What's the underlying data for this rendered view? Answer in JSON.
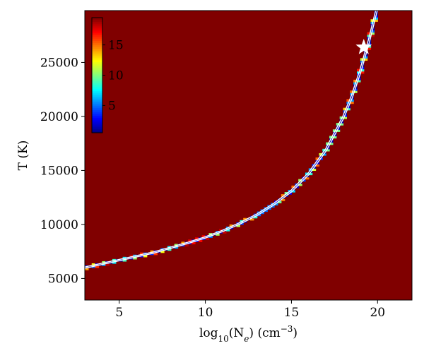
{
  "chart_data": {
    "type": "heatmap",
    "title": "",
    "xlabel": "log10(Ne) (cm−3)",
    "xlabel_parts": {
      "pre": "log",
      "sub": "10",
      "mid": "(N",
      "sub2": "e",
      "post": ") (cm",
      "sup": "−3",
      "end": ")"
    },
    "ylabel": "T (K)",
    "xlim": [
      3,
      22
    ],
    "ylim": [
      3000,
      29800
    ],
    "xticks": [
      5,
      10,
      15,
      20
    ],
    "yticks": [
      5000,
      10000,
      15000,
      20000,
      25000
    ],
    "colormap": "jet",
    "colorbar": {
      "range": [
        0.5,
        19.5
      ],
      "ticks": [
        5,
        10,
        15
      ],
      "placement": "inset top-left"
    },
    "background_value": 19.5,
    "valley_curve": {
      "log10_ne": [
        3,
        5,
        7,
        9,
        10,
        11,
        12,
        13,
        14,
        15,
        16,
        17,
        18,
        18.5,
        19,
        19.5,
        20
      ],
      "temperature_K": [
        6000,
        6700,
        7400,
        8300,
        8800,
        9400,
        10100,
        10900,
        11900,
        13100,
        14700,
        16900,
        19900,
        21800,
        24200,
        27000,
        30200
      ]
    },
    "contour_color": "#ffffff",
    "best_fit_marker": {
      "log10_ne": 19.2,
      "temperature_K": 26400,
      "symbol": "star",
      "color": "#ffffff"
    }
  }
}
